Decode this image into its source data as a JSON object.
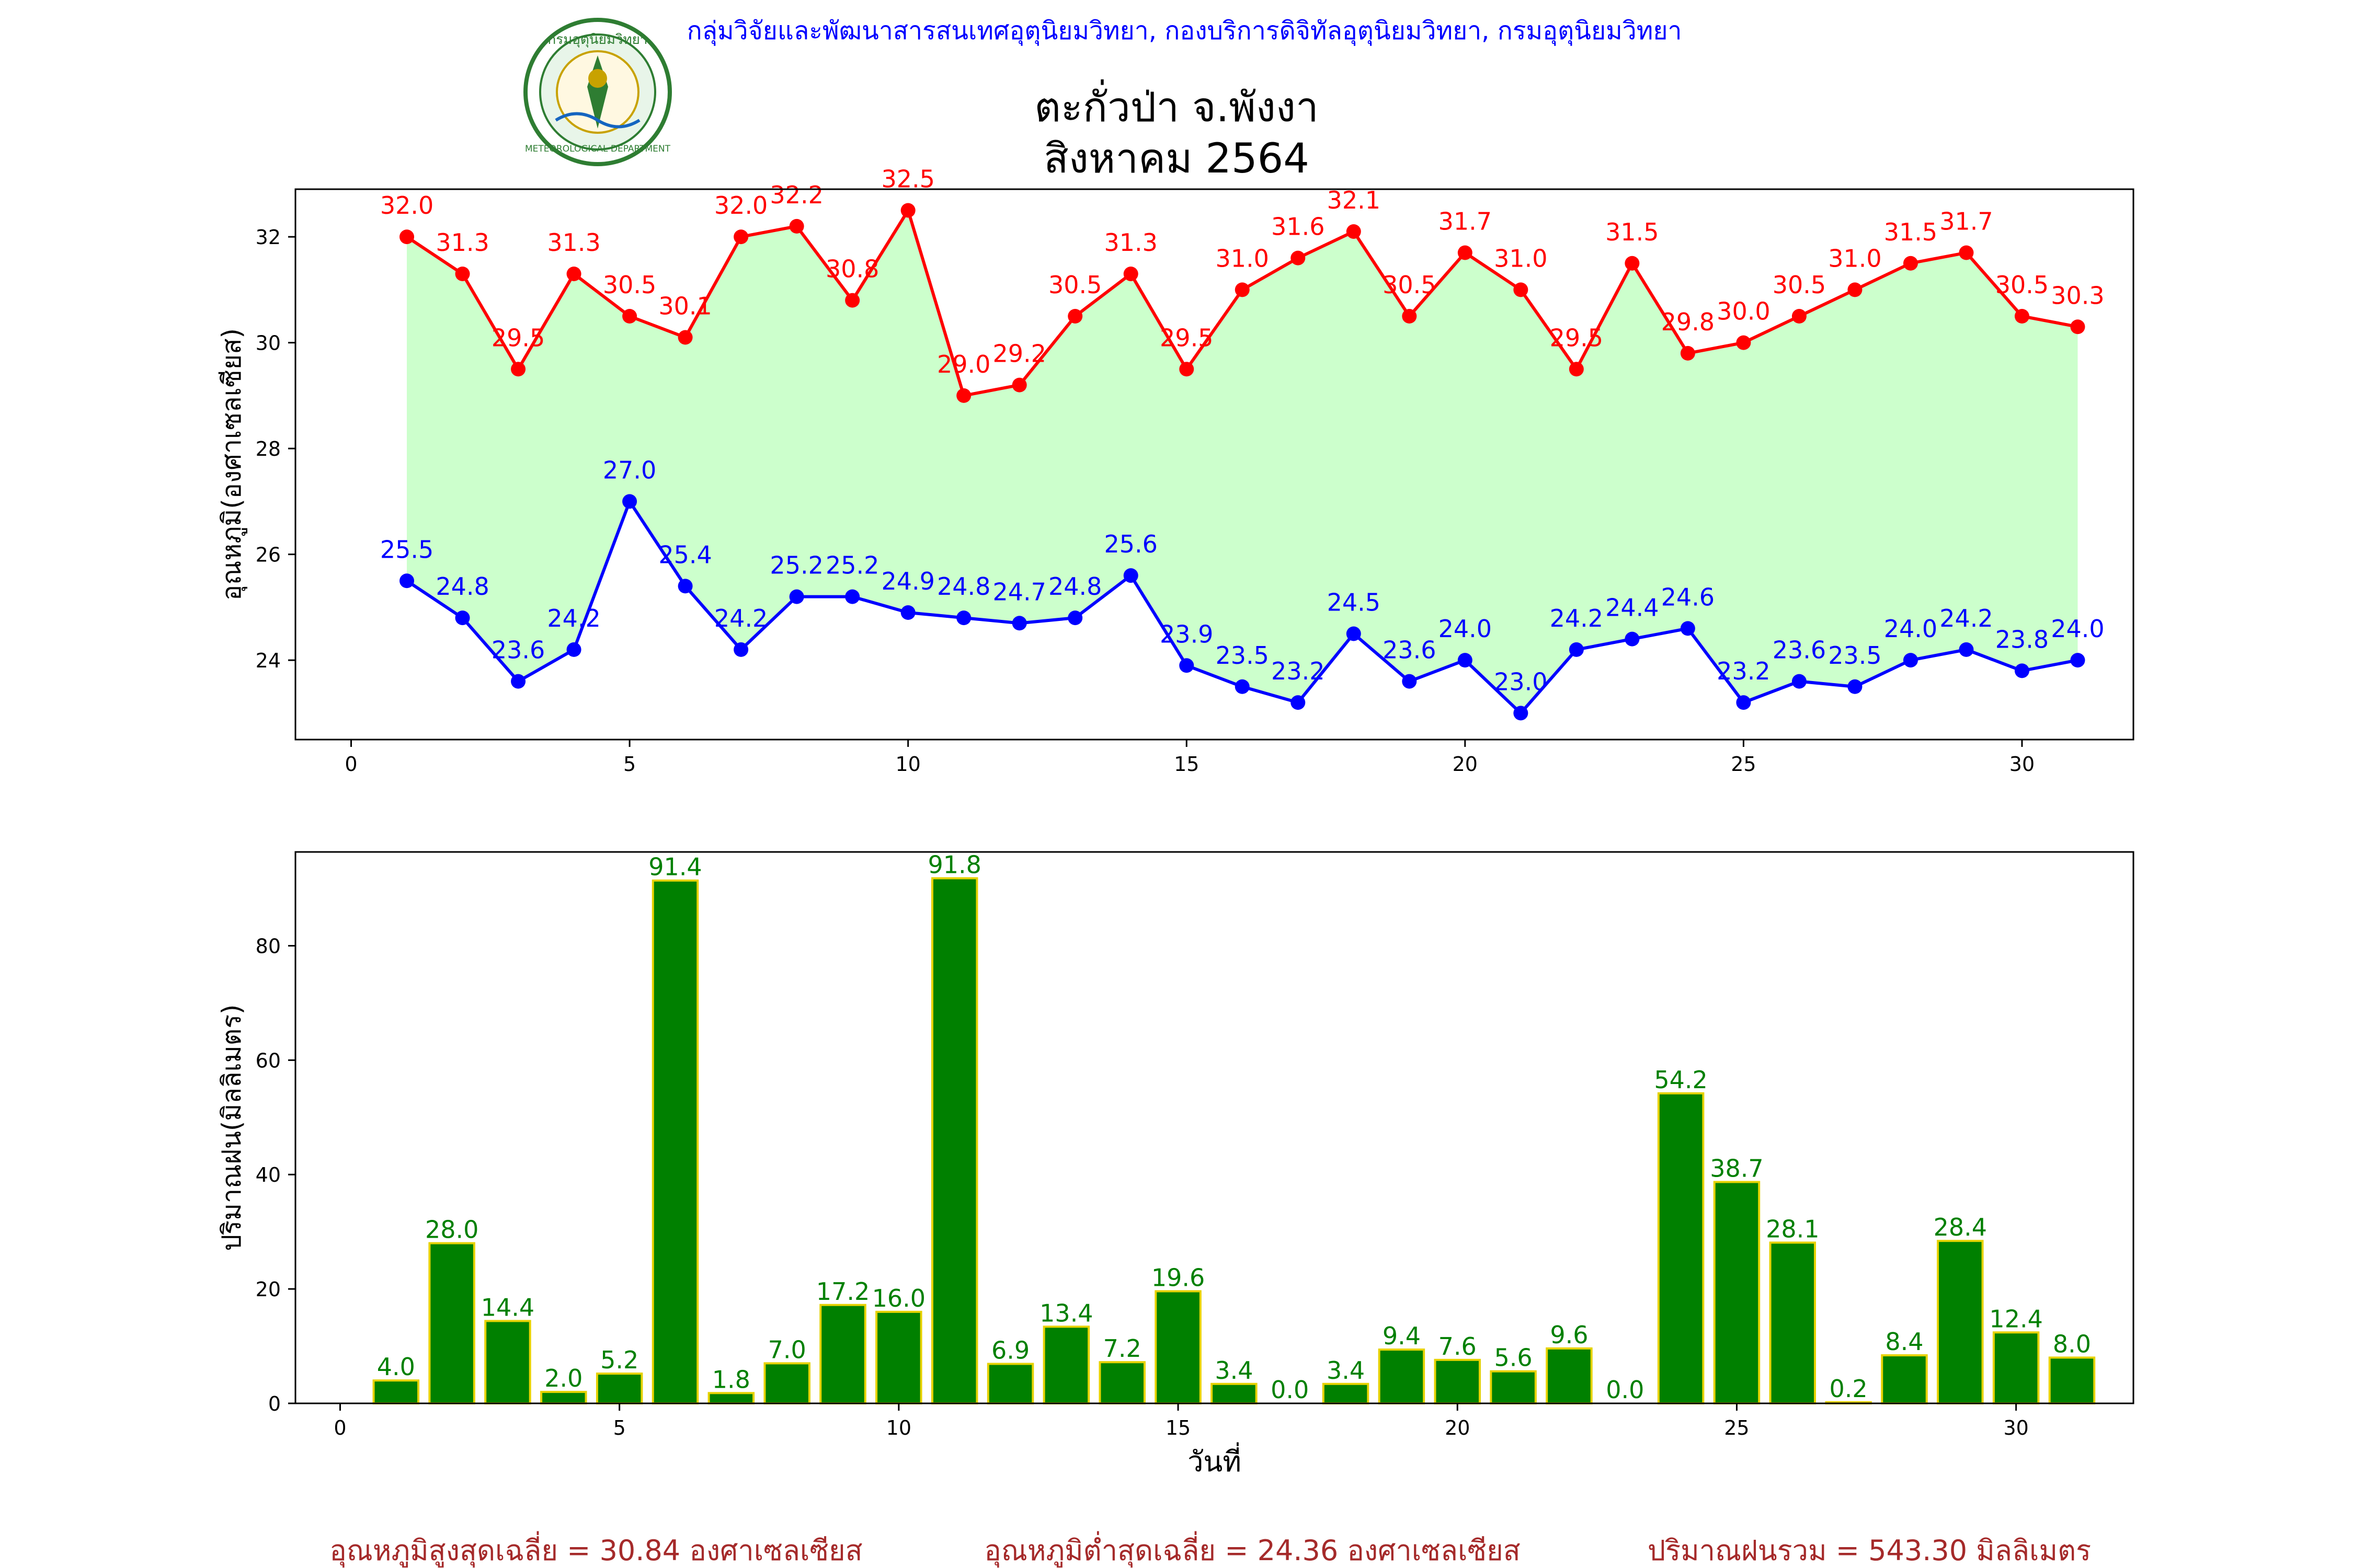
{
  "header": {
    "agency_text": "กลุ่มวิจัยและพัฒนาสารสนเทศอุตุนิยมวิทยา, กองบริการดิจิทัลอุตุนิยมวิทยา, กรมอุตุนิยมวิทยา",
    "logo_top_text": "กรมอุตุนิยมวิทยา",
    "logo_bottom_text": "METEOROLOGICAL DEPARTMENT",
    "title_line1": "ตะกั่วป่า จ.พังงา",
    "title_line2": "สิงหาคม 2564"
  },
  "colors": {
    "max_temp": "#ff0000",
    "min_temp": "#0000ff",
    "temp_fill": "#ccffcc",
    "rain_bar": "#008000",
    "rain_edge": "#e6d200",
    "rain_label": "#008000",
    "agency_text": "#0000ff",
    "footer_text": "#a52a2a"
  },
  "chart_data": [
    {
      "type": "line",
      "ylabel": "อุณหภูมิ(องศาเซลเซียส)",
      "xlabel": "",
      "xlim": [
        -1,
        32
      ],
      "ylim": [
        22.5,
        32.9
      ],
      "x_ticks": [
        0,
        5,
        10,
        15,
        20,
        25,
        30
      ],
      "y_ticks": [
        24,
        26,
        28,
        30,
        32
      ],
      "x": [
        1,
        2,
        3,
        4,
        5,
        6,
        7,
        8,
        9,
        10,
        11,
        12,
        13,
        14,
        15,
        16,
        17,
        18,
        19,
        20,
        21,
        22,
        23,
        24,
        25,
        26,
        27,
        28,
        29,
        30,
        31
      ],
      "fill_between_series": true,
      "series": [
        {
          "values": [
            32.0,
            31.3,
            29.5,
            31.3,
            30.5,
            30.1,
            32.0,
            32.2,
            30.8,
            32.5,
            29.0,
            29.2,
            30.5,
            31.3,
            29.5,
            31.0,
            31.6,
            32.1,
            30.5,
            31.7,
            31.0,
            29.5,
            31.5,
            29.8,
            30.0,
            30.5,
            31.0,
            31.5,
            31.7,
            30.5,
            30.3
          ]
        },
        {
          "values": [
            25.5,
            24.8,
            23.6,
            24.2,
            27.0,
            25.4,
            24.2,
            25.2,
            25.2,
            24.9,
            24.8,
            24.7,
            24.8,
            25.6,
            23.9,
            23.5,
            23.2,
            24.5,
            23.6,
            24.0,
            23.0,
            24.2,
            24.4,
            24.6,
            23.2,
            23.6,
            23.5,
            24.0,
            24.2,
            23.8,
            24.0
          ]
        }
      ]
    },
    {
      "type": "bar",
      "ylabel": "ปริมาณฝน(มิลลิเมตร)",
      "xlabel": "วันที่",
      "xlim": [
        -0.8,
        32.1
      ],
      "ylim": [
        0,
        96.4
      ],
      "x_ticks": [
        0,
        5,
        10,
        15,
        20,
        25,
        30
      ],
      "y_ticks": [
        0,
        20,
        40,
        60,
        80
      ],
      "x": [
        1,
        2,
        3,
        4,
        5,
        6,
        7,
        8,
        9,
        10,
        11,
        12,
        13,
        14,
        15,
        16,
        17,
        18,
        19,
        20,
        21,
        22,
        23,
        24,
        25,
        26,
        27,
        28,
        29,
        30,
        31
      ],
      "values": [
        4.0,
        28.0,
        14.4,
        2.0,
        5.2,
        91.4,
        1.8,
        7.0,
        17.2,
        16.0,
        91.8,
        6.9,
        13.4,
        7.2,
        19.6,
        3.4,
        0.0,
        3.4,
        9.4,
        7.6,
        5.6,
        9.6,
        0.0,
        54.2,
        38.7,
        28.1,
        0.2,
        8.4,
        28.4,
        12.4,
        8.0
      ]
    }
  ],
  "footer": {
    "avg_max": "อุณหภูมิสูงสุดเฉลี่ย = 30.84 องศาเซลเซียส",
    "avg_min": "อุณหภูมิต่ำสุดเฉลี่ย = 24.36 องศาเซลเซียส",
    "total_rain": "ปริมาณฝนรวม = 543.30 มิลลิเมตร"
  }
}
